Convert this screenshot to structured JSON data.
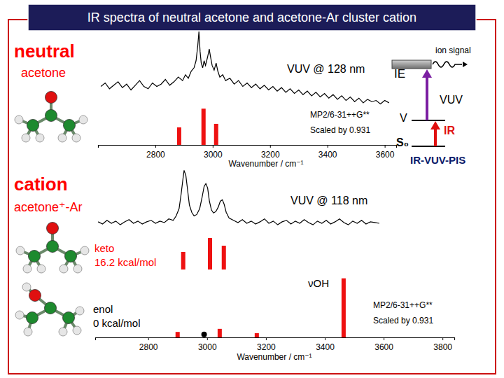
{
  "title": "IR spectra of neutral acetone and acetone-Ar cluster cation",
  "diagram": {
    "labels": [
      "ion signal",
      "IE",
      "VUV",
      "V",
      "IR",
      "S₀",
      "IR-VUV-PIS"
    ]
  },
  "chart_data": [
    {
      "type": "line",
      "title": "neutral",
      "subtitle": "acetone",
      "annotations": [
        "VUV @ 128 nm",
        "MP2/6-31++G**",
        "Scaled by 0.931"
      ],
      "x_label": "Wavenumber / cm⁻¹",
      "xlim": [
        2600,
        3640
      ],
      "xticks": [
        2800,
        3000,
        3200,
        3400,
        3600
      ],
      "ylim": [
        0,
        100
      ],
      "tick_labels": "x",
      "grid": false,
      "series": [
        {
          "type": "line",
          "color": "#000000",
          "x": [
            2610,
            2625,
            2640,
            2655,
            2670,
            2685,
            2700,
            2715,
            2730,
            2745,
            2760,
            2775,
            2790,
            2805,
            2820,
            2835,
            2850,
            2865,
            2880,
            2895,
            2905,
            2915,
            2925,
            2935,
            2942,
            2948,
            2952,
            2956,
            2960,
            2965,
            2970,
            2975,
            2982,
            2988,
            2992,
            2998,
            3005,
            3012,
            3018,
            3025,
            3035,
            3045,
            3060,
            3075,
            3090,
            3105,
            3120,
            3135,
            3150,
            3165,
            3180,
            3195,
            3210,
            3225,
            3240,
            3255,
            3270,
            3285,
            3300,
            3315,
            3330,
            3345,
            3360,
            3375,
            3390,
            3405,
            3420,
            3435,
            3450,
            3465,
            3480,
            3495,
            3510,
            3525,
            3540,
            3555,
            3570,
            3585,
            3600,
            3615
          ],
          "values": [
            50,
            53,
            48,
            51,
            54,
            49,
            52,
            47,
            51,
            55,
            50,
            48,
            53,
            50,
            52,
            56,
            51,
            54,
            58,
            55,
            60,
            57,
            63,
            66,
            72,
            85,
            97,
            80,
            70,
            66,
            72,
            68,
            75,
            82,
            76,
            68,
            64,
            70,
            63,
            58,
            60,
            55,
            57,
            52,
            55,
            50,
            53,
            49,
            52,
            48,
            51,
            47,
            50,
            46,
            49,
            45,
            48,
            44,
            47,
            43,
            46,
            42,
            45,
            41,
            44,
            40,
            43,
            39,
            42,
            38,
            41,
            37,
            40,
            36,
            39,
            37,
            38,
            35,
            38,
            36
          ]
        },
        {
          "type": "bar",
          "color": "#ee1111",
          "x": [
            2883,
            2968,
            3012
          ],
          "values": [
            15,
            31,
            18
          ]
        }
      ]
    },
    {
      "type": "line",
      "title": "cation",
      "subtitle": "acetone⁺-Ar",
      "annotations": [
        "VUV @ 118 nm"
      ],
      "xlim": [
        2620,
        3840
      ],
      "ylim": [
        0,
        100
      ],
      "tick_labels": false,
      "series": [
        {
          "type": "line",
          "color": "#000000",
          "x": [
            2630,
            2645,
            2660,
            2675,
            2690,
            2705,
            2720,
            2735,
            2750,
            2765,
            2780,
            2795,
            2810,
            2825,
            2840,
            2855,
            2870,
            2885,
            2895,
            2905,
            2912,
            2918,
            2922,
            2928,
            2934,
            2940,
            2948,
            2956,
            2965,
            2975,
            2983,
            2990,
            2996,
            3002,
            3008,
            3015,
            3022,
            3030,
            3038,
            3045,
            3052,
            3058,
            3065,
            3075,
            3090,
            3105,
            3120,
            3135,
            3150,
            3165,
            3180,
            3195,
            3210,
            3225,
            3240,
            3255,
            3270,
            3285,
            3300,
            3315,
            3330,
            3345,
            3360,
            3375,
            3390,
            3405,
            3420,
            3435,
            3450,
            3465,
            3480,
            3495,
            3510,
            3525,
            3540,
            3555,
            3570,
            3585
          ],
          "values": [
            22,
            19,
            24,
            20,
            23,
            18,
            22,
            25,
            20,
            23,
            19,
            22,
            24,
            20,
            23,
            21,
            26,
            24,
            30,
            40,
            60,
            80,
            92,
            85,
            65,
            45,
            35,
            30,
            32,
            40,
            55,
            70,
            74,
            68,
            50,
            38,
            34,
            36,
            42,
            50,
            52,
            46,
            35,
            27,
            24,
            21,
            25,
            20,
            23,
            19,
            22,
            26,
            20,
            23,
            18,
            22,
            24,
            19,
            23,
            20,
            25,
            21,
            18,
            23,
            20,
            24,
            19,
            22,
            26,
            21,
            18,
            23,
            20,
            24,
            19,
            22,
            21,
            20
          ]
        }
      ]
    },
    {
      "type": "bar",
      "title": "keto",
      "subtitle": "16.2 kcal/mol",
      "xlim": [
        2620,
        3840
      ],
      "ylim": [
        0,
        100
      ],
      "tick_labels": false,
      "series": [
        {
          "type": "bar",
          "color": "#ee1111",
          "x": [
            2919,
            3010,
            3057
          ],
          "values": [
            50,
            90,
            68
          ]
        }
      ]
    },
    {
      "type": "bar",
      "title": "enol",
      "subtitle": "0 kcal/mol",
      "annotations": [
        "νOH",
        "MP2/6-31++G**",
        "Scaled by 0.931"
      ],
      "x_label": "Wavenumber / cm⁻¹",
      "xlim": [
        2620,
        3840
      ],
      "xticks": [
        2800,
        3000,
        3200,
        3400,
        3600,
        3800
      ],
      "ylim": [
        0,
        100
      ],
      "tick_labels": "x",
      "series": [
        {
          "type": "bar",
          "color": "#ee1111",
          "x": [
            2900,
            3043,
            3169,
            3464
          ],
          "values": [
            9,
            14,
            7,
            97
          ]
        },
        {
          "type": "scatter",
          "marker": "circle",
          "color": "#000000",
          "x": [
            2990
          ],
          "values": [
            5
          ]
        }
      ]
    }
  ]
}
